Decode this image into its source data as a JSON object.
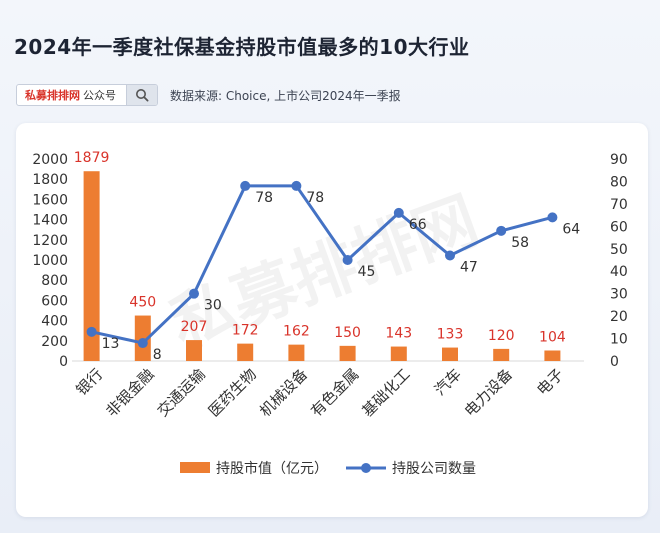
{
  "title": "2024年一季度社保基金持股市值最多的10大行业",
  "source_bar": {
    "brand": "私募排排网",
    "brand_suffix": "公众号",
    "search_icon": "search-icon",
    "source_text": "数据来源: Choice, 上市公司2024年一季报"
  },
  "watermark": "私募排排网",
  "colors": {
    "bar": "#ed7d31",
    "line": "#4472c4",
    "bar_label": "#d9342b",
    "line_label": "#333333",
    "axis_text": "#333333",
    "grid": "#d9d9d9"
  },
  "chart_data": {
    "type": "bar",
    "categories": [
      "银行",
      "非银金融",
      "交通运输",
      "医药生物",
      "机械设备",
      "有色金属",
      "基础化工",
      "汽车",
      "电力设备",
      "电子"
    ],
    "series": [
      {
        "name": "持股市值（亿元）",
        "type": "bar",
        "axis": "left",
        "values": [
          1879,
          450,
          207,
          172,
          162,
          150,
          143,
          133,
          120,
          104
        ]
      },
      {
        "name": "持股公司数量",
        "type": "line",
        "axis": "right",
        "values": [
          13,
          8,
          30,
          78,
          78,
          45,
          66,
          47,
          58,
          64
        ]
      }
    ],
    "y_left": {
      "min": 0,
      "max": 2000,
      "ticks": [
        0,
        200,
        400,
        600,
        800,
        1000,
        1200,
        1400,
        1600,
        1800,
        2000
      ]
    },
    "y_right": {
      "min": 0,
      "max": 90,
      "ticks": [
        0,
        10,
        20,
        30,
        40,
        50,
        60,
        70,
        80,
        90
      ]
    },
    "grid": false,
    "legend_position": "bottom"
  }
}
